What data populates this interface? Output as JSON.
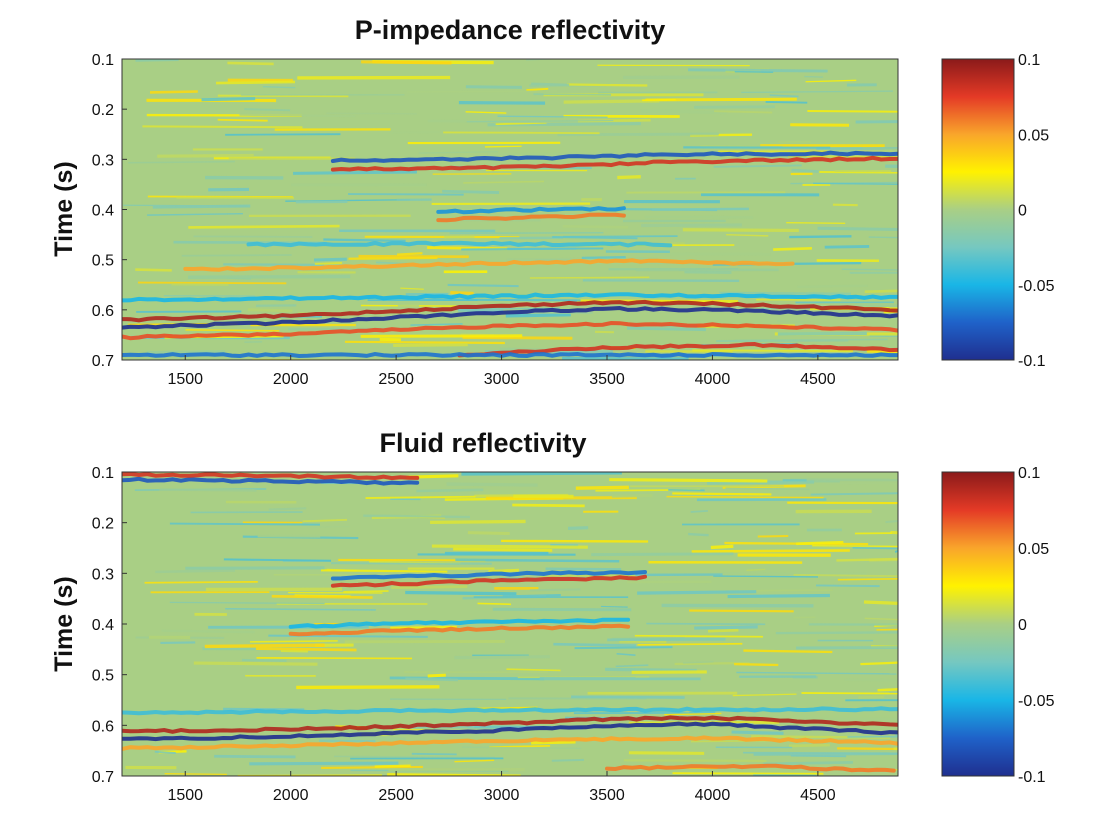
{
  "colorscale": {
    "stops": [
      "#1f2f8f",
      "#1f62c9",
      "#19b6e6",
      "#76c8c0",
      "#a9cf85",
      "#fff200",
      "#f9a52b",
      "#e43a26",
      "#8b1a1a"
    ]
  },
  "chart_data": [
    {
      "type": "heatmap",
      "title": "P-impedance reflectivity",
      "xlabel": "",
      "ylabel": "Time (s)",
      "xlim": [
        1200,
        4880
      ],
      "ylim": [
        0.1,
        0.7
      ],
      "xticks": [
        1500,
        2000,
        2500,
        3000,
        3500,
        4000,
        4500
      ],
      "yticks": [
        0.1,
        0.2,
        0.3,
        0.4,
        0.5,
        0.6,
        0.7
      ],
      "xtick_labels": [
        "1500",
        "2000",
        "2500",
        "3000",
        "3500",
        "4000",
        "4500"
      ],
      "ytick_labels": [
        "0.1",
        "0.2",
        "0.3",
        "0.4",
        "0.5",
        "0.6",
        "0.7"
      ],
      "colorbar": {
        "range": [
          -0.1,
          0.1
        ],
        "ticks": [
          0.1,
          0.05,
          0,
          -0.05,
          -0.1
        ],
        "tick_labels": [
          "0.1",
          "0.05",
          "0",
          "-0.05",
          "-0.1"
        ]
      },
      "reflectors": [
        {
          "x": [
            1200,
            2000,
            2500,
            3000,
            3500,
            4000,
            4880
          ],
          "t": [
            0.635,
            0.625,
            0.615,
            0.605,
            0.598,
            0.6,
            0.612
          ],
          "amp": -0.1
        },
        {
          "x": [
            1200,
            2000,
            2500,
            3000,
            3500,
            4000,
            4880
          ],
          "t": [
            0.62,
            0.612,
            0.602,
            0.592,
            0.585,
            0.588,
            0.6
          ],
          "amp": 0.09
        },
        {
          "x": [
            1200,
            2000,
            2500,
            3000,
            3500,
            4000,
            4880
          ],
          "t": [
            0.655,
            0.648,
            0.64,
            0.632,
            0.628,
            0.63,
            0.64
          ],
          "amp": 0.07
        },
        {
          "x": [
            2800,
            3500,
            4200,
            4880
          ],
          "t": [
            0.69,
            0.675,
            0.67,
            0.68
          ],
          "amp": 0.08
        },
        {
          "x": [
            1200,
            4880
          ],
          "t": [
            0.69,
            0.69
          ],
          "amp": -0.07
        },
        {
          "x": [
            2200,
            2800,
            3400,
            3800,
            4880
          ],
          "t": [
            0.32,
            0.318,
            0.312,
            0.305,
            0.298
          ],
          "amp": 0.08
        },
        {
          "x": [
            2200,
            2800,
            3400,
            3800,
            4880
          ],
          "t": [
            0.302,
            0.3,
            0.295,
            0.29,
            0.288
          ],
          "amp": -0.08
        },
        {
          "x": [
            2700,
            3200,
            3600
          ],
          "t": [
            0.42,
            0.415,
            0.41
          ],
          "amp": 0.06
        },
        {
          "x": [
            2700,
            3200,
            3600
          ],
          "t": [
            0.405,
            0.4,
            0.398
          ],
          "amp": -0.06
        },
        {
          "x": [
            1500,
            2500,
            3200,
            3700,
            4400
          ],
          "t": [
            0.52,
            0.512,
            0.505,
            0.502,
            0.51
          ],
          "amp": 0.05
        },
        {
          "x": [
            1800,
            2800,
            3800
          ],
          "t": [
            0.47,
            0.468,
            0.47
          ],
          "amp": -0.04
        },
        {
          "x": [
            1200,
            2500,
            3500,
            4880
          ],
          "t": [
            0.58,
            0.575,
            0.57,
            0.575
          ],
          "amp": -0.05
        }
      ]
    },
    {
      "type": "heatmap",
      "title": "Fluid reflectivity",
      "xlabel": "",
      "ylabel": "Time (s)",
      "xlim": [
        1200,
        4880
      ],
      "ylim": [
        0.1,
        0.7
      ],
      "xticks": [
        1500,
        2000,
        2500,
        3000,
        3500,
        4000,
        4500
      ],
      "yticks": [
        0.1,
        0.2,
        0.3,
        0.4,
        0.5,
        0.6,
        0.7
      ],
      "xtick_labels": [
        "1500",
        "2000",
        "2500",
        "3000",
        "3500",
        "4000",
        "4500"
      ],
      "ytick_labels": [
        "0.1",
        "0.2",
        "0.3",
        "0.4",
        "0.5",
        "0.6",
        "0.7"
      ],
      "colorbar": {
        "range": [
          -0.1,
          0.1
        ],
        "ticks": [
          0.1,
          0.05,
          0,
          -0.05,
          -0.1
        ],
        "tick_labels": [
          "0.1",
          "0.05",
          "0",
          "-0.05",
          "-0.1"
        ]
      },
      "reflectors": [
        {
          "x": [
            1200,
            2000,
            2500,
            3000,
            3500,
            4000,
            4880
          ],
          "t": [
            0.628,
            0.622,
            0.615,
            0.61,
            0.6,
            0.598,
            0.615
          ],
          "amp": -0.1
        },
        {
          "x": [
            1200,
            2000,
            2500,
            3000,
            3500,
            4000,
            4880
          ],
          "t": [
            0.612,
            0.608,
            0.602,
            0.596,
            0.588,
            0.585,
            0.6
          ],
          "amp": 0.09
        },
        {
          "x": [
            1200,
            2000,
            3000,
            4000,
            4880
          ],
          "t": [
            0.645,
            0.64,
            0.63,
            0.625,
            0.635
          ],
          "amp": 0.05
        },
        {
          "x": [
            3500,
            4200,
            4880
          ],
          "t": [
            0.685,
            0.68,
            0.69
          ],
          "amp": 0.06
        },
        {
          "x": [
            2200,
            2700,
            3200,
            3700
          ],
          "t": [
            0.325,
            0.318,
            0.312,
            0.308
          ],
          "amp": 0.08
        },
        {
          "x": [
            2200,
            2700,
            3200,
            3700
          ],
          "t": [
            0.31,
            0.305,
            0.3,
            0.298
          ],
          "amp": -0.07
        },
        {
          "x": [
            2000,
            2600,
            3100,
            3600
          ],
          "t": [
            0.42,
            0.412,
            0.408,
            0.405
          ],
          "amp": 0.06
        },
        {
          "x": [
            2000,
            2600,
            3100,
            3600
          ],
          "t": [
            0.405,
            0.398,
            0.395,
            0.392
          ],
          "amp": -0.05
        },
        {
          "x": [
            1200,
            2000,
            2600
          ],
          "t": [
            0.115,
            0.118,
            0.122
          ],
          "amp": -0.08
        },
        {
          "x": [
            1200,
            2000,
            2600
          ],
          "t": [
            0.105,
            0.108,
            0.112
          ],
          "amp": 0.08
        },
        {
          "x": [
            1200,
            3000,
            4880
          ],
          "t": [
            0.575,
            0.57,
            0.568
          ],
          "amp": -0.04
        }
      ]
    }
  ]
}
